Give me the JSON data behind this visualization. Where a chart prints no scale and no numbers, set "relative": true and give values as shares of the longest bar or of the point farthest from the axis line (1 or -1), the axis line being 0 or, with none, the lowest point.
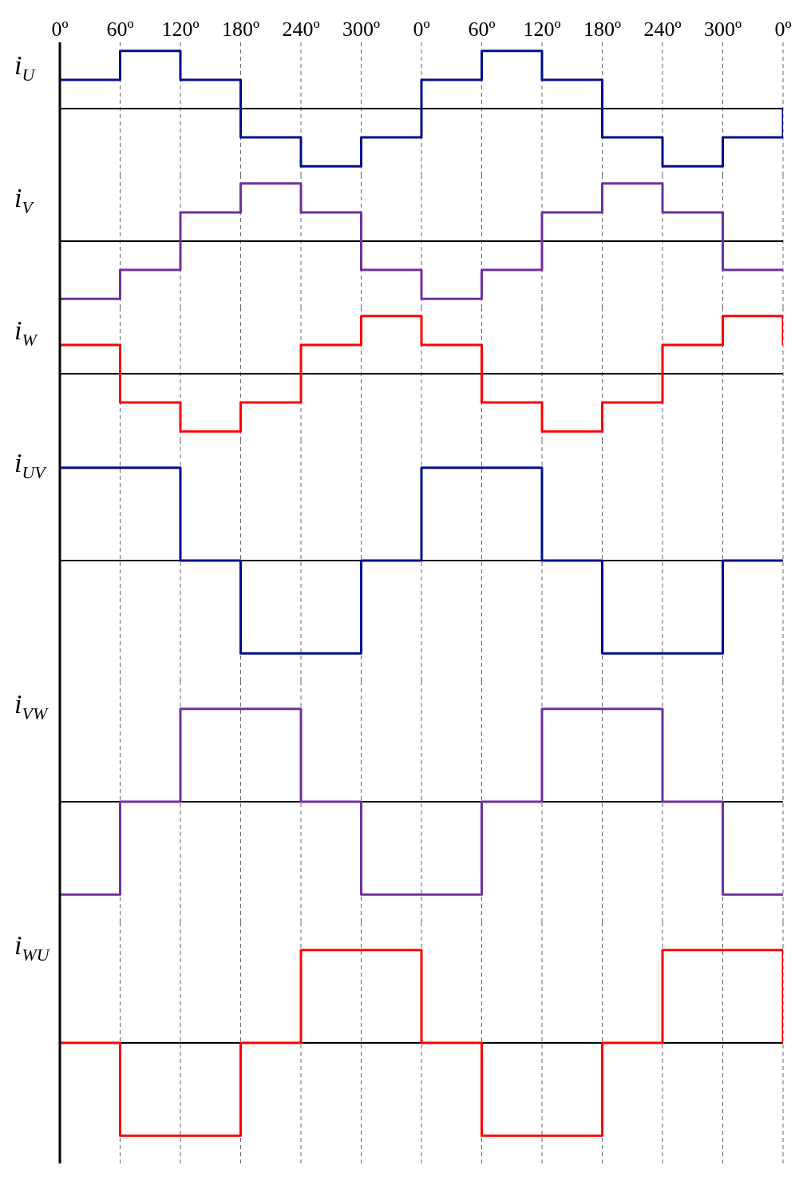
{
  "chart_data": [
    {
      "type": "step",
      "ylabel": "i$_{U}$",
      "relative": true,
      "grid": "x",
      "tick_labels": "x",
      "color": "#000e8f",
      "categories": [
        "0º",
        "60º",
        "120º",
        "180º",
        "240º",
        "300º",
        "0º",
        "60º",
        "120º",
        "180º",
        "240º",
        "300º",
        "0º"
      ],
      "values": [
        0.5,
        1,
        0.5,
        -0.5,
        -1,
        -0.5,
        0.5,
        1,
        0.5,
        -0.5,
        -1,
        -0.5,
        0
      ]
    },
    {
      "type": "step",
      "ylabel": "i$_{V}$",
      "relative": true,
      "grid": "x",
      "tick_labels": false,
      "color": "#7030a0",
      "categories": [
        null,
        null,
        null,
        null,
        null,
        null,
        null,
        null,
        null,
        null,
        null,
        null,
        null
      ],
      "values": [
        -1,
        -0.5,
        0.5,
        1,
        0.5,
        -0.5,
        -1,
        -0.5,
        0.5,
        1,
        0.5,
        -0.5,
        -0.5
      ]
    },
    {
      "type": "step",
      "ylabel": "i$_{W}$",
      "relative": true,
      "grid": "x",
      "tick_labels": false,
      "color": "#ff0000",
      "categories": [
        null,
        null,
        null,
        null,
        null,
        null,
        null,
        null,
        null,
        null,
        null,
        null,
        null
      ],
      "values": [
        0.5,
        -0.5,
        -1,
        -0.5,
        0.5,
        1,
        0.5,
        -0.5,
        -1,
        -0.5,
        0.5,
        1,
        0.5
      ]
    },
    {
      "type": "step",
      "ylabel": "i$_{UV}$",
      "relative": true,
      "grid": "x",
      "tick_labels": false,
      "color": "#000e8f",
      "categories": [
        null,
        null,
        null,
        null,
        null,
        null,
        null,
        null,
        null,
        null,
        null,
        null,
        null
      ],
      "values": [
        1,
        1,
        0,
        -1,
        -1,
        0,
        1,
        1,
        0,
        -1,
        -1,
        0,
        0
      ]
    },
    {
      "type": "step",
      "ylabel": "i$_{VW}$",
      "relative": true,
      "grid": "x",
      "tick_labels": false,
      "color": "#7030a0",
      "categories": [
        null,
        null,
        null,
        null,
        null,
        null,
        null,
        null,
        null,
        null,
        null,
        null,
        null
      ],
      "values": [
        -1,
        0,
        1,
        1,
        0,
        -1,
        -1,
        0,
        1,
        1,
        0,
        -1,
        -1
      ]
    },
    {
      "type": "step",
      "ylabel": "i$_{WU}$",
      "relative": true,
      "grid": "x",
      "tick_labels": false,
      "color": "#ff0000",
      "categories": [
        null,
        null,
        null,
        null,
        null,
        null,
        null,
        null,
        null,
        null,
        null,
        null,
        null
      ],
      "values": [
        0,
        -1,
        -1,
        0,
        1,
        1,
        0,
        -1,
        -1,
        0,
        1,
        1,
        0
      ]
    }
  ]
}
